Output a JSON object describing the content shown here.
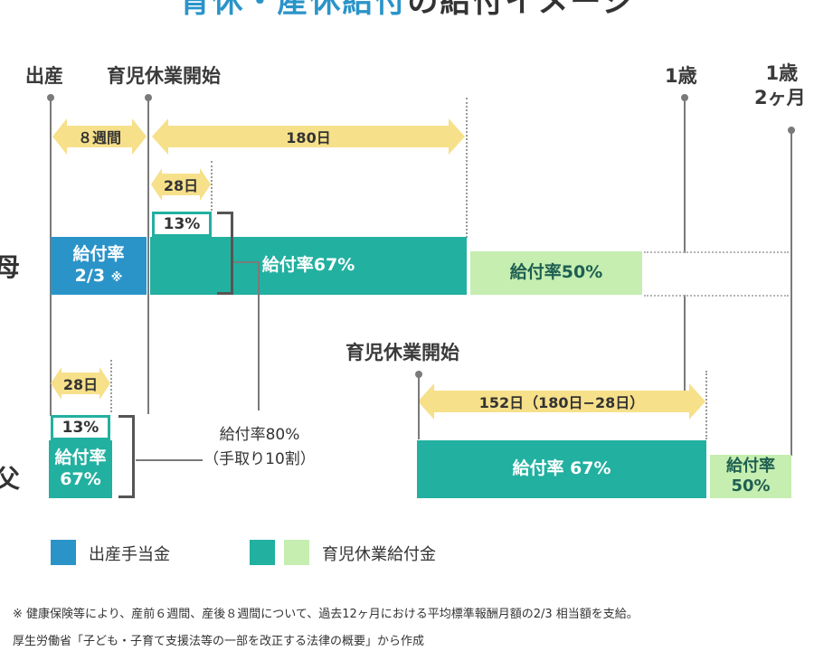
{
  "title": {
    "part1": "育休・産休給付",
    "part2": "の給付イメージ",
    "color1": "#2a94c9",
    "color2": "#333333"
  },
  "timeline": {
    "birth": "出産",
    "leave_start": "育児休業開始",
    "one_year": "1歳",
    "one_year_two_month_line1": "1歳",
    "one_year_two_month_line2": "2ヶ月"
  },
  "arrows": {
    "eight_weeks": "８週間",
    "days_180": "180日",
    "days_28_mother": "28日",
    "days_28_father": "28日",
    "days_152": "152日（180日−28日）"
  },
  "rows": {
    "mother": "母",
    "father": "父"
  },
  "mother": {
    "maternity_line1": "給付率",
    "maternity_line2": "2/3",
    "maternity_mark": "※",
    "extra_pct": "13%",
    "rate_67": "給付率67%",
    "rate_50": "給付率50%"
  },
  "father": {
    "leave_start": "育児休業開始",
    "extra_pct": "13%",
    "rate_line1": "給付率",
    "rate_line2": "67%",
    "rate_67": "給付率 67%",
    "rate_50_line1": "給付率",
    "rate_50_line2": "50%"
  },
  "combined": {
    "line1": "給付率80%",
    "line2": "（手取り10割）"
  },
  "legend": {
    "maternity": "出産手当金",
    "childcare": "育児休業給付金"
  },
  "notes": {
    "footnote": "※ 健康保険等により、産前６週間、産後８週間について、過去12ヶ月における平均標準報酬月額の2/3 相当額を支給。",
    "source": "厚生労働省「子ども・子育て支援法等の一部を改正する法律の概要」から作成"
  },
  "colors": {
    "maternity": "#2a94c9",
    "childcare_dark": "#22b0a0",
    "childcare_light": "#c5eeb0",
    "arrow": "#f7e08a"
  }
}
